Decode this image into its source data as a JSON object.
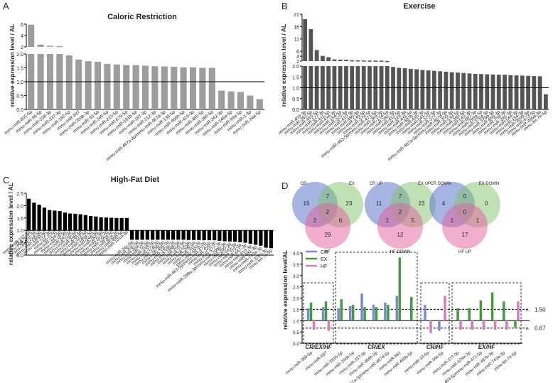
{
  "panels": {
    "A": {
      "letter": "A",
      "title": "Caloric Restriction",
      "ylabel": "relative expression level / AL"
    },
    "B": {
      "letter": "B",
      "title": "Exercise",
      "ylabel": "relative expression level / AL"
    },
    "C": {
      "letter": "C",
      "title": "High-Fat Diet",
      "ylabel": "relative expression level / AL"
    },
    "D": {
      "letter": "D",
      "ylabel": "relative expression level/AL"
    }
  },
  "venns": [
    {
      "labels": [
        "CR",
        "EX",
        "HF"
      ],
      "regions": [
        "15",
        "7",
        "23",
        "2",
        "2",
        "6",
        "29"
      ]
    },
    {
      "labels": [
        "CR UP",
        "EX UP",
        "HF DOWN"
      ],
      "regions": [
        "11",
        "7",
        "23",
        "2",
        "1",
        "5",
        "12"
      ]
    },
    {
      "labels": [
        "CR DOWN",
        "EX DOWN",
        "HF UP"
      ],
      "regions": [
        "4",
        "0",
        "0",
        "0",
        "1",
        "1",
        "17"
      ]
    }
  ],
  "colors": {
    "cr": "#9d9d9d",
    "ex": "#555555",
    "hf": "#000000",
    "d_cr": "#7b88d6",
    "d_ex": "#3f9e3a",
    "d_hf": "#d97ac0"
  },
  "chart_data": [
    {
      "type": "bar",
      "panel": "A",
      "title": "Caloric Restriction",
      "ylabel": "relative expression level / AL",
      "yticks_lower": [
        "0.0",
        "0.5",
        "1.0",
        "1.5",
        "2.0"
      ],
      "yticks_upper": [
        "2",
        "4",
        "6"
      ],
      "ylim": [
        0,
        6
      ],
      "reference_line": 1.0,
      "categories": [
        "mmu-miR-802-5p",
        "mmu-miR-96-5p",
        "mmu-miR-338-3p",
        "mmu-miR-337-3p",
        "mmu-miR-182-5p",
        "mmu-miR-897",
        "mmu-miR-200b-3p",
        "mmu-miR-33-5p",
        "mmu-miR-345-5p",
        "mmu-miR-215-5p",
        "mmu-miR-679-5p",
        "mmu-miR-181b-5p",
        "mmu-miR-187-3p",
        "mmu-miR-212-3p",
        "mmu-miR-467a-3p/mmu-miR-467d-3p",
        "mmu-miR-139-5p",
        "mmu-miR-466h-5p",
        "mmu-miR-429-3p",
        "mmu-miR-465-5p",
        "mmu-miR-380-5p",
        "mmu-miR-342-3p",
        "mmu-miR-146a-5p",
        "mmu-miR-99a-5p",
        "mmu-miR-1-3p",
        "mmu-miR-34a-5p"
      ],
      "values": [
        5.9,
        2.4,
        2.2,
        2.15,
        1.95,
        1.8,
        1.74,
        1.72,
        1.64,
        1.62,
        1.6,
        1.6,
        1.58,
        1.56,
        1.55,
        1.54,
        1.52,
        1.52,
        1.5,
        1.5,
        0.68,
        0.65,
        0.63,
        0.5,
        0.37
      ]
    },
    {
      "type": "bar",
      "panel": "B",
      "title": "Exercise",
      "ylabel": "relative expression level / AL",
      "yticks_lower": [
        "0.0",
        "0.5",
        "1.0",
        "1.5",
        "2.0"
      ],
      "yticks_upper": [
        "2",
        "4",
        "6",
        "11",
        "16",
        "21"
      ],
      "ylim": [
        0,
        21
      ],
      "reference_line": 1.0,
      "categories": [
        "mmu-miR-409-3p",
        "mmu-miR-382-5p",
        "mmu-miR-493-5p",
        "mmu-miR-127-3p",
        "mmu-miR-411-5p",
        "mmu-miR-434-3p",
        "mmu-miR-154-5p",
        "mmu-miR-323-3p",
        "mmu-miR-410-3p",
        "mmu-miR-485-3p",
        "mmu-miR-136-5p",
        "mmu-miR-379-5p",
        "mmu-miR-463-5p/mmu-miR-471-5p",
        "mmu-miR-369-3p",
        "mmu-miR-134-5p",
        "mmu-miR-381-3p",
        "mmu-miR-412-5p",
        "mmu-miR-329-3p",
        "mmu-miR-431-5p",
        "mmu-miR-487b-3p",
        "mmu-miR-495-3p",
        "mmu-miR-541-5p",
        "mmu-miR-370-3p",
        "mmu-miR-377-3p",
        "mmu-miR-467a-3p/mmu-miR-467d-3p",
        "mmu-miR-300-3p",
        "mmu-miR-539-5p",
        "mmu-miR-380-5p",
        "mmu-miR-543-3p",
        "mmu-miR-667-3p",
        "mmu-miR-299a-5p",
        "mmu-miR-376a-3p",
        "mmu-miR-376b-3p",
        "mmu-miR-665-3p",
        "mmu-miR-758-3p",
        "mmu-miR-341-3p",
        "mmu-miR-544-3p",
        "mmu-miR-154-3p",
        "mmu-miR-3099-3p",
        "mmu-miR-673-5p",
        "mmu-miR-496a-3p",
        "mmu-let-7e-5p"
      ],
      "values": [
        19,
        15,
        6.5,
        4.1,
        3.6,
        2.7,
        2.6,
        2.55,
        2.3,
        2.27,
        2.25,
        2.22,
        2.2,
        2.18,
        2.05,
        1.96,
        1.92,
        1.9,
        1.87,
        1.85,
        1.82,
        1.8,
        1.78,
        1.76,
        1.74,
        1.72,
        1.7,
        1.68,
        1.66,
        1.64,
        1.63,
        1.62,
        1.61,
        1.6,
        1.6,
        1.58,
        1.57,
        1.56,
        1.55,
        1.54,
        1.53,
        0.7
      ]
    },
    {
      "type": "bar",
      "panel": "C",
      "title": "High-Fat Diet",
      "ylabel": "relative expression level / AL",
      "yticks": [
        "0.0",
        "0.5",
        "1.0",
        "1.5",
        "2.0",
        "2.5"
      ],
      "ylim": [
        0,
        2.5
      ],
      "reference_line": 1.0,
      "categories": [
        "mmu-miR-142-3p",
        "mmu-miR-223-3p",
        "mmu-miR-21a-5p",
        "mmu-miR-146b-5p",
        "mmu-miR-132-3p",
        "mmu-let-7i-5p",
        "mmu-miR-15a-5p",
        "mmu-miR-16-5p",
        "mmu-miR-342-3p",
        "mmu-miR-150-5p",
        "mmu-miR-29b-3p",
        "mmu-miR-322-5p",
        "mmu-miR-146a-5p",
        "mmu-miR-34a-5p",
        "mmu-miR-182-5p",
        "mmu-miR-103-3p",
        "mmu-miR-126a-5p",
        "mmu-miR-92a-3p",
        "mmu-miR-99b-5p",
        "mmu-miR-101a-3p",
        "mmu-miR-34c-5p",
        "mmu-miR-30e-5p",
        "mmu-miR-30a-5p",
        "mmu-miR-31-5p",
        "mmu-miR-194-5p",
        "mmu-miR-27a-3p",
        "mmu-miR-125b-5p",
        "mmu-miR-455-3p",
        "mmu-miR-193a-3p",
        "mmu-miR-199b-5p",
        "mmu-miR-204-5p",
        "mmu-miR-214-3p",
        "mmu-miR-296-5p",
        "mmu-miR-341-3p",
        "mmu-miR-487b-3p",
        "mmu-miR-463-5p/mmu-miR-471-5p",
        "mmu-miR-329-3p",
        "mmu-miR-377-3p",
        "mmu-miR-299a-3p/mmu-miR-299b-3p",
        "mmu-miR-300-3p",
        "mmu-miR-543-3p",
        "mmu-miR-370-3p",
        "mmu-miR-667-3p",
        "mmu-miR-410-3p",
        "mmu-miR-381-3p",
        "mmu-miR-743a-3p",
        "mmu-miR-376c-3p",
        "mmu-let-7e-5p"
      ],
      "values": [
        2.28,
        2.12,
        2.04,
        1.92,
        1.82,
        1.8,
        1.78,
        1.72,
        1.68,
        1.67,
        1.65,
        1.62,
        1.58,
        1.56,
        1.53,
        1.52,
        1.51,
        1.5,
        1.5,
        1.5,
        0.62,
        0.62,
        0.62,
        0.62,
        0.62,
        0.62,
        0.62,
        0.62,
        0.62,
        0.62,
        0.62,
        0.61,
        0.61,
        0.61,
        0.6,
        0.6,
        0.6,
        0.58,
        0.56,
        0.55,
        0.54,
        0.52,
        0.5,
        0.46,
        0.42,
        0.38,
        0.3,
        0.28
      ]
    },
    {
      "type": "bar",
      "panel": "D",
      "ylabel": "relative expression level/AL",
      "yticks": [
        "0.0",
        "0.5",
        "1.0",
        "1.5",
        "2.0",
        "2.5",
        "3.0",
        "3.5",
        "4.0"
      ],
      "ylim": [
        0,
        4
      ],
      "threshold_labels": [
        "1.50",
        "0.67"
      ],
      "legend": [
        "CR",
        "EX",
        "HF"
      ],
      "groups": [
        {
          "label": "CR/EX/HF",
          "categories": [
            "mmu-miR-380-5p",
            "mmu-miR-697"
          ]
        },
        {
          "label": "CR/EX",
          "categories": [
            "mmu-miR-181b-5p",
            "mmu-miR-200b-5p",
            "mmu-miR-337-3p",
            "mmu-miR-466h-3p",
            "mmu-miR-467a-3p/mmu-miR-467d-3p",
            "mmu-miR-681",
            "mmu-miR-466b-5p"
          ]
        },
        {
          "label": "CR/HF",
          "categories": [
            "mmu-miR-33-5p",
            "mmu-miR-34a-5p"
          ]
        },
        {
          "label": "EX/HF",
          "categories": [
            "mmu-miR-377-3p",
            "mmu-miR-329a-3p",
            "mmu-miR-463-5p/mmu-miR-471-5p",
            "mmu-miR-487b-3p",
            "mmu-miR-743a-3p",
            "mmu-let-7e-5p"
          ]
        }
      ],
      "series": [
        {
          "name": "CR",
          "values": [
            1.55,
            1.6,
            1.55,
            1.65,
            2.2,
            1.7,
            1.8,
            2.1,
            0,
            1.7,
            0.55,
            0,
            0,
            0,
            0,
            0,
            0
          ]
        },
        {
          "name": "EX",
          "values": [
            1.8,
            1.85,
            1.95,
            1.7,
            1.6,
            1.6,
            1.7,
            3.8,
            2.05,
            0,
            0,
            1.55,
            1.55,
            1.9,
            2.25,
            1.85,
            0.7
          ]
        },
        {
          "name": "HF",
          "values": [
            0.6,
            0.55,
            0,
            0,
            0,
            0,
            0,
            0,
            0,
            0.45,
            2.1,
            0.6,
            0.6,
            0.6,
            0.6,
            0.6,
            1.85
          ]
        }
      ]
    }
  ]
}
